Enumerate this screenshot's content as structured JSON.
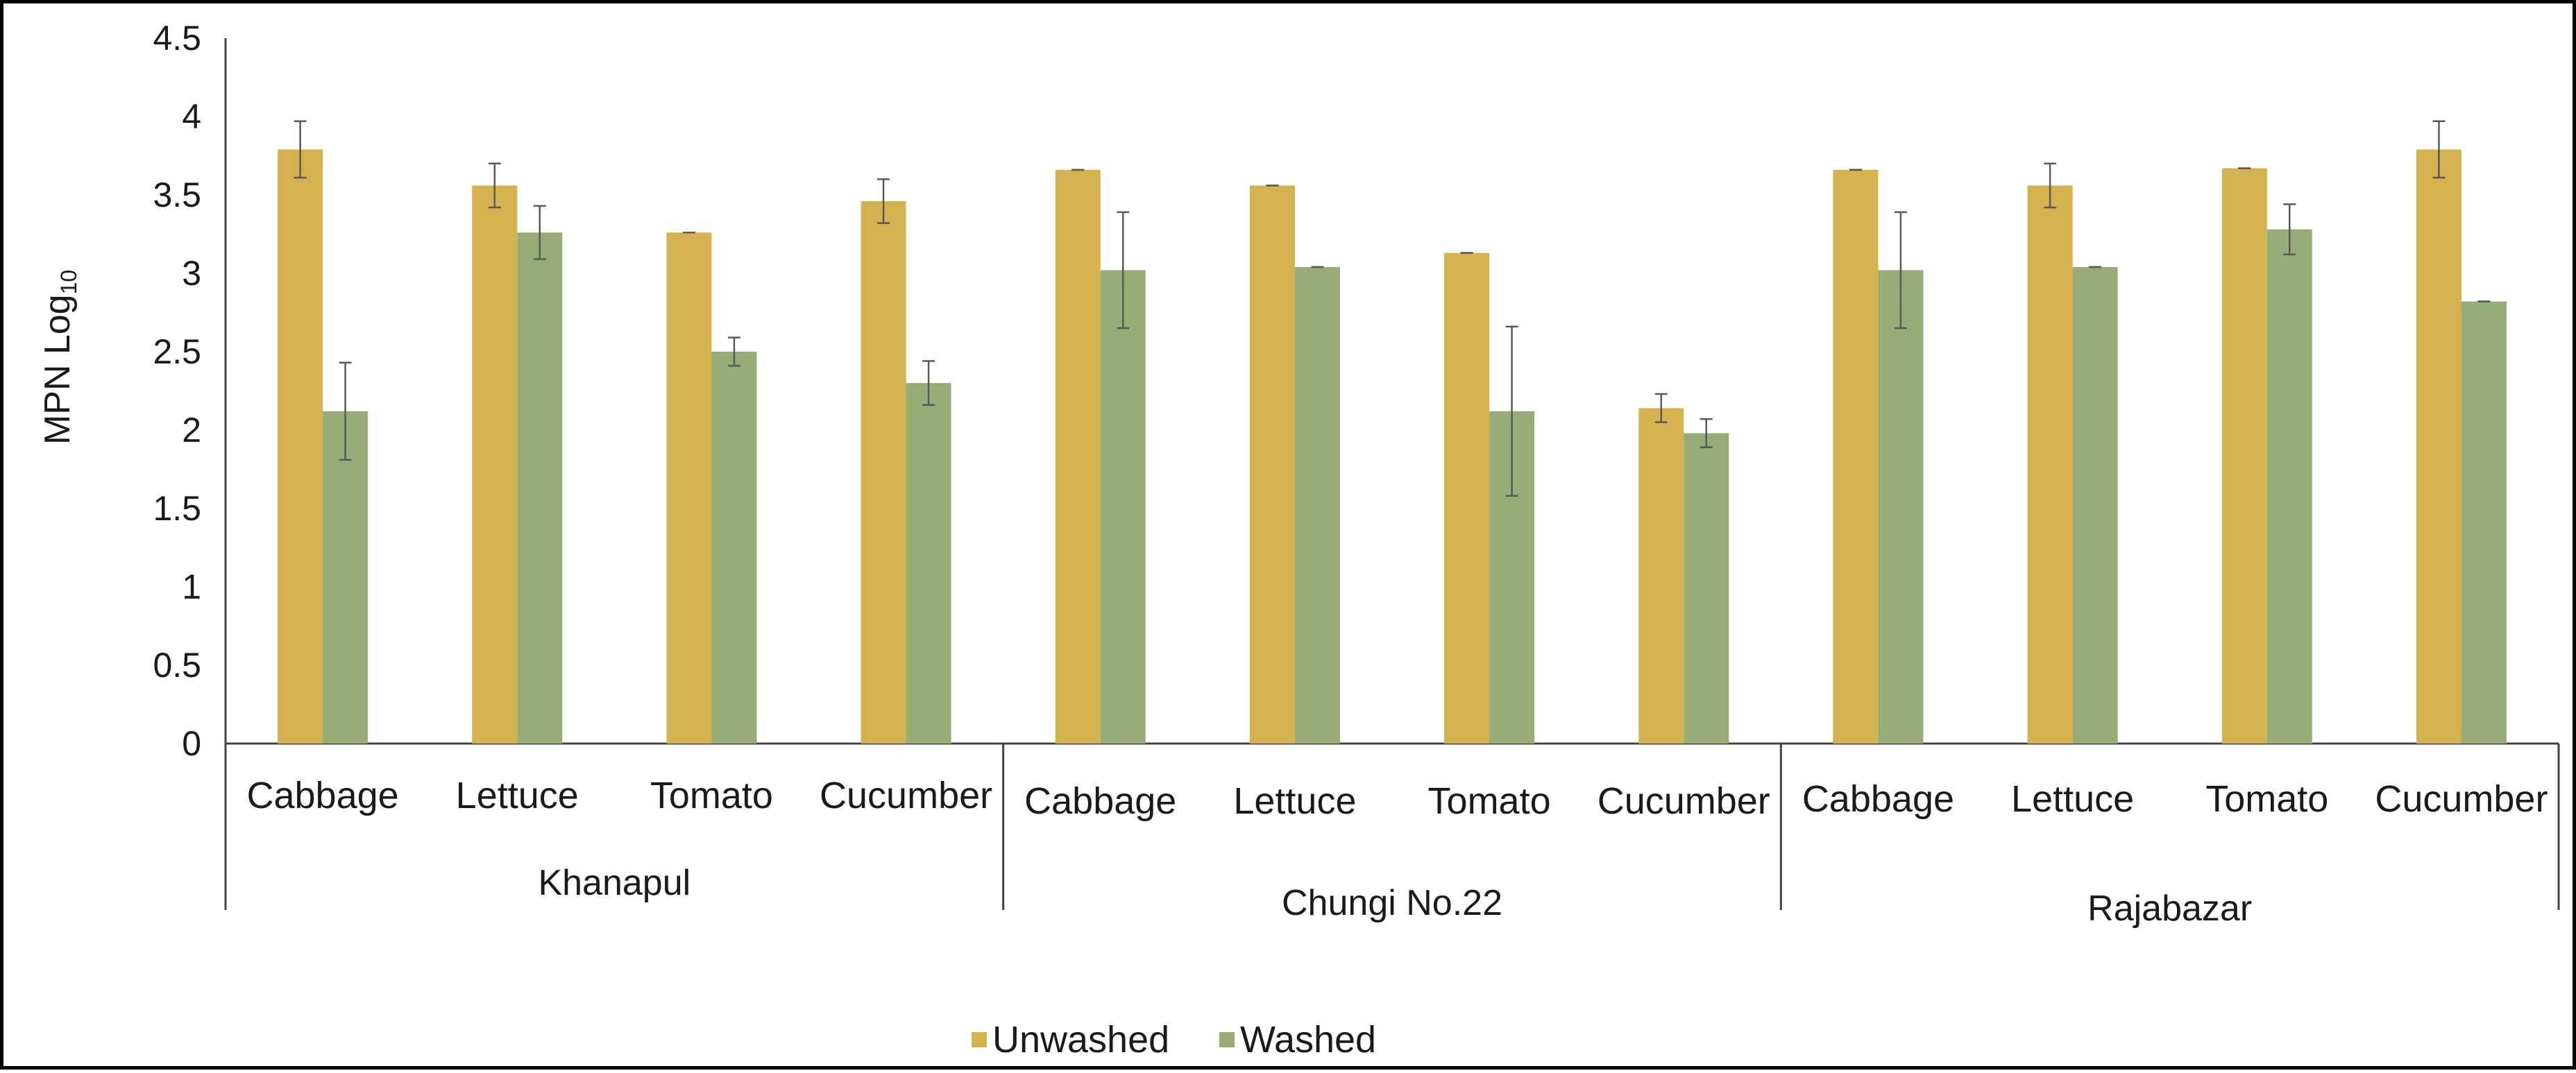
{
  "chart_data": {
    "type": "bar",
    "ylabel": "MPN Log",
    "ylabel_subscript": "10",
    "ylim": [
      0,
      4.5
    ],
    "yticks": [
      "0",
      "0.5",
      "1",
      "1.5",
      "2",
      "2.5",
      "3",
      "3.5",
      "4",
      "4.5"
    ],
    "groups": [
      {
        "name": "Khanapul",
        "categories": [
          "Cabbage",
          "Lettuce",
          "Tomato",
          "Cucumber"
        ]
      },
      {
        "name": "Chungi No.22",
        "categories": [
          "Cabbage",
          "Lettuce",
          "Tomato",
          "Cucumber"
        ]
      },
      {
        "name": "Rajabazar",
        "categories": [
          "Cabbage",
          "Lettuce",
          "Tomato",
          "Cucumber"
        ]
      }
    ],
    "series": [
      {
        "name": "Unwashed",
        "color": "#d4b24f",
        "values": [
          3.79,
          3.56,
          3.26,
          3.46,
          3.66,
          3.56,
          3.13,
          2.14,
          3.66,
          3.56,
          3.67,
          3.79
        ],
        "errors": [
          0.18,
          0.14,
          0.0,
          0.14,
          0.0,
          0.0,
          0.0,
          0.09,
          0.0,
          0.14,
          0.0,
          0.18
        ]
      },
      {
        "name": "Washed",
        "color": "#96ad78",
        "values": [
          2.12,
          3.26,
          2.5,
          2.3,
          3.02,
          3.04,
          2.12,
          1.98,
          3.02,
          3.04,
          3.28,
          2.82
        ],
        "errors": [
          0.31,
          0.17,
          0.09,
          0.14,
          0.37,
          0.0,
          0.54,
          0.09,
          0.37,
          0.0,
          0.16,
          0.0
        ]
      }
    ],
    "legend": "bottom-center",
    "grid": false
  }
}
